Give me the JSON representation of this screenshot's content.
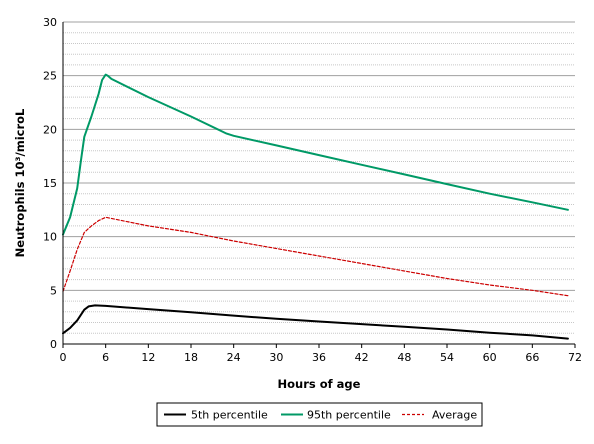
{
  "chart_data": {
    "type": "line",
    "title": "",
    "xlabel": "Hours of age",
    "ylabel": "Neutrophils 10³/microL",
    "xlim": [
      0,
      72
    ],
    "ylim": [
      0,
      30
    ],
    "x_ticks": [
      0,
      6,
      12,
      18,
      24,
      30,
      36,
      42,
      48,
      54,
      60,
      66,
      72
    ],
    "y_ticks": [
      0,
      5,
      10,
      15,
      20,
      25,
      30
    ],
    "grid": {
      "major_y": true,
      "minor_y": true,
      "x": false
    },
    "legend_position": "bottom",
    "series": [
      {
        "name": "5th percentile",
        "color": "#000000",
        "style": "solid",
        "points": [
          [
            0,
            1.0
          ],
          [
            1,
            1.5
          ],
          [
            2,
            2.2
          ],
          [
            3,
            3.2
          ],
          [
            3.6,
            3.5
          ],
          [
            4.5,
            3.6
          ],
          [
            6,
            3.55
          ],
          [
            12,
            3.25
          ],
          [
            18,
            2.95
          ],
          [
            24,
            2.65
          ],
          [
            30,
            2.35
          ],
          [
            36,
            2.1
          ],
          [
            42,
            1.85
          ],
          [
            48,
            1.6
          ],
          [
            54,
            1.35
          ],
          [
            60,
            1.05
          ],
          [
            66,
            0.8
          ],
          [
            71,
            0.5
          ]
        ]
      },
      {
        "name": "95th percentile",
        "color": "#009966",
        "style": "solid",
        "points": [
          [
            0,
            10.2
          ],
          [
            1,
            11.8
          ],
          [
            2,
            14.5
          ],
          [
            2.5,
            17.0
          ],
          [
            3,
            19.3
          ],
          [
            4,
            21.2
          ],
          [
            5,
            23.3
          ],
          [
            5.5,
            24.6
          ],
          [
            6,
            25.1
          ],
          [
            6.3,
            25.0
          ],
          [
            6.8,
            24.7
          ],
          [
            12,
            23.0
          ],
          [
            18,
            21.2
          ],
          [
            23,
            19.6
          ],
          [
            24,
            19.4
          ],
          [
            30,
            18.5
          ],
          [
            36,
            17.6
          ],
          [
            42,
            16.7
          ],
          [
            48,
            15.8
          ],
          [
            54,
            14.9
          ],
          [
            60,
            14.0
          ],
          [
            66,
            13.2
          ],
          [
            71,
            12.5
          ]
        ]
      },
      {
        "name": "Average",
        "color": "#cc0000",
        "style": "dashed",
        "points": [
          [
            0,
            4.9
          ],
          [
            1,
            6.8
          ],
          [
            2,
            8.8
          ],
          [
            3,
            10.4
          ],
          [
            4,
            11.0
          ],
          [
            5,
            11.5
          ],
          [
            6,
            11.8
          ],
          [
            12,
            11.0
          ],
          [
            18,
            10.4
          ],
          [
            24,
            9.6
          ],
          [
            30,
            8.9
          ],
          [
            36,
            8.2
          ],
          [
            42,
            7.5
          ],
          [
            48,
            6.8
          ],
          [
            54,
            6.1
          ],
          [
            60,
            5.5
          ],
          [
            66,
            5.0
          ],
          [
            71,
            4.5
          ]
        ]
      }
    ]
  }
}
